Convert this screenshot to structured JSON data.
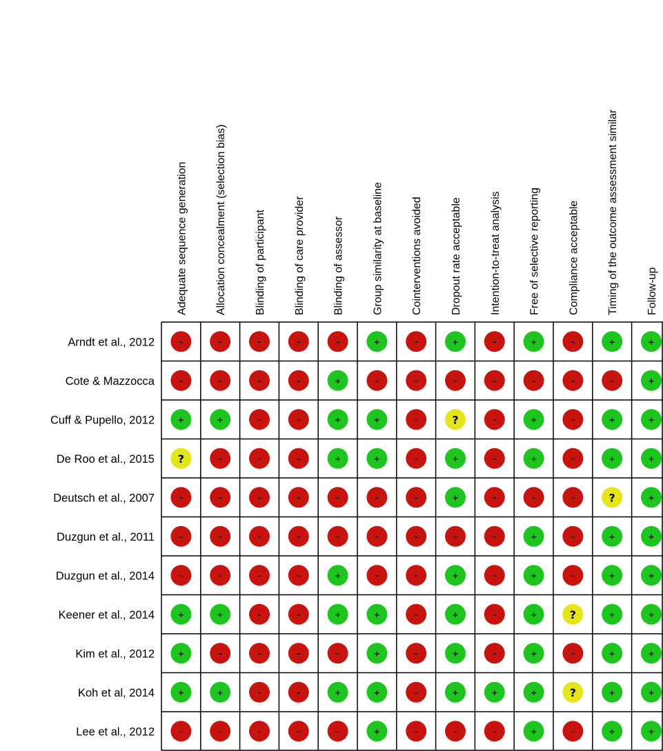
{
  "chart_data": {
    "type": "table",
    "judgements": {
      "+": {
        "symbol": "+",
        "color": "#1ec51e"
      },
      "-": {
        "symbol": "–",
        "color": "#c8140f"
      },
      "?": {
        "symbol": "?",
        "color": "#e5e51b"
      }
    },
    "columns": [
      "Adequate sequence generation",
      "Allocation concealment (selection bias)",
      "Blinding of participant",
      "Blinding of care provider",
      "Blinding of assessor",
      "Group similarity at baseline",
      "Cointerventions avoided",
      "Dropout rate acceptable",
      "Intention-to-treat analysis",
      "Free of selective reporting",
      "Compliance acceptable",
      "Timing of the outcome assessment similar",
      "Follow-up"
    ],
    "rows": [
      {
        "study": "Arndt et al., 2012",
        "values": [
          "-",
          "-",
          "-",
          "-",
          "-",
          "+",
          "-",
          "+",
          "-",
          "+",
          "-",
          "+",
          "+"
        ]
      },
      {
        "study": "Cote & Mazzocca",
        "values": [
          "-",
          "-",
          "-",
          "-",
          "+",
          "-",
          "-",
          "-",
          "-",
          "-",
          "-",
          "-",
          "+"
        ]
      },
      {
        "study": "Cuff & Pupello, 2012",
        "values": [
          "+",
          "+",
          "-",
          "-",
          "+",
          "+",
          "-",
          "?",
          "-",
          "+",
          "-",
          "+",
          "+"
        ]
      },
      {
        "study": "De Roo et al., 2015",
        "values": [
          "?",
          "-",
          "-",
          "-",
          "+",
          "+",
          "-",
          "+",
          "-",
          "+",
          "-",
          "+",
          "+"
        ]
      },
      {
        "study": "Deutsch et al., 2007",
        "values": [
          "-",
          "-",
          "-",
          "-",
          "-",
          "-",
          "-",
          "+",
          "-",
          "-",
          "-",
          "?",
          "+"
        ]
      },
      {
        "study": "Duzgun et al., 2011",
        "values": [
          "-",
          "-",
          "-",
          "-",
          "-",
          "-",
          "-",
          "-",
          "-",
          "+",
          "-",
          "+",
          "+"
        ]
      },
      {
        "study": "Duzgun et al., 2014",
        "values": [
          "-",
          "-",
          "-",
          "-",
          "+",
          "-",
          "-",
          "+",
          "-",
          "+",
          "-",
          "+",
          "+"
        ]
      },
      {
        "study": "Keener et al., 2014",
        "values": [
          "+",
          "+",
          "-",
          "-",
          "+",
          "+",
          "-",
          "+",
          "-",
          "+",
          "?",
          "+",
          "+"
        ]
      },
      {
        "study": "Kim et al., 2012",
        "values": [
          "+",
          "-",
          "-",
          "-",
          "-",
          "+",
          "-",
          "+",
          "-",
          "+",
          "-",
          "+",
          "+"
        ]
      },
      {
        "study": "Koh et al, 2014",
        "values": [
          "+",
          "+",
          "-",
          "-",
          "+",
          "+",
          "-",
          "+",
          "+",
          "+",
          "?",
          "+",
          "+"
        ]
      },
      {
        "study": "Lee et al., 2012",
        "values": [
          "-",
          "-",
          "-",
          "-",
          "-",
          "+",
          "-",
          "-",
          "-",
          "+",
          "-",
          "+",
          "+"
        ]
      }
    ]
  }
}
